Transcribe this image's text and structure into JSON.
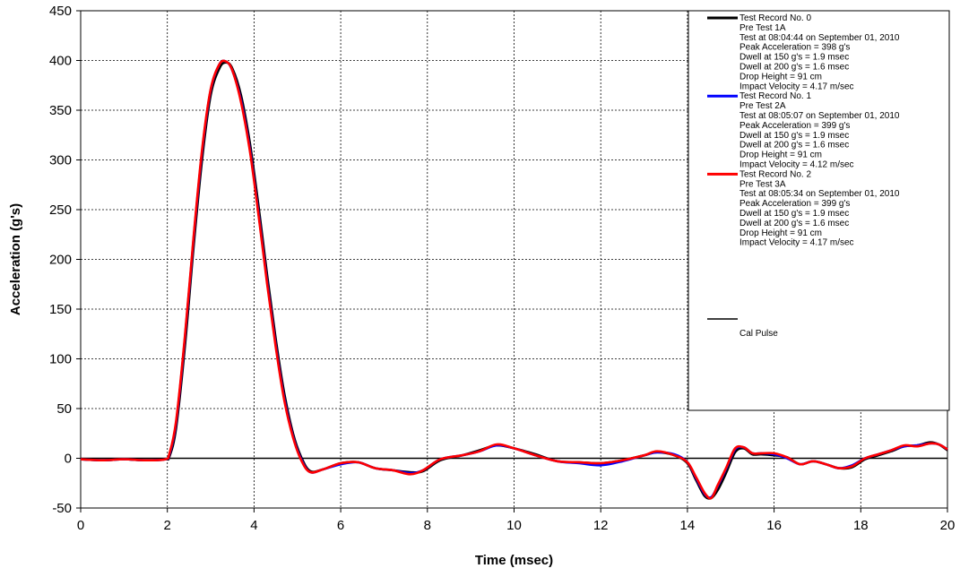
{
  "chart_data": {
    "type": "line",
    "xlabel": "Time (msec)",
    "ylabel": "Acceleration (g's)",
    "xlim": [
      0,
      20
    ],
    "ylim": [
      -50,
      450
    ],
    "x_ticks": [
      0,
      2,
      4,
      6,
      8,
      10,
      12,
      14,
      16,
      18,
      20
    ],
    "y_ticks": [
      -50,
      0,
      50,
      100,
      150,
      200,
      250,
      300,
      350,
      400,
      450
    ],
    "grid": "dashed",
    "legend_placement": "top-right",
    "series": [
      {
        "name": "Test Record No. 0",
        "color": "#000000",
        "lines": [
          "Pre Test 1A",
          "Test at 08:04:44 on September 01, 2010",
          "Peak Acceleration = 398 g's",
          "Dwell at 150 g's = 1.9 msec",
          "Dwell at 200 g's = 1.6 msec",
          "Drop Height = 91 cm",
          "Impact Velocity = 4.17 m/sec"
        ],
        "x": [
          0,
          0.5,
          1,
          1.5,
          1.95,
          2.05,
          2.2,
          2.4,
          2.6,
          2.8,
          3.0,
          3.2,
          3.35,
          3.5,
          3.7,
          3.9,
          4.1,
          4.3,
          4.5,
          4.7,
          4.9,
          5.1,
          5.3,
          5.6,
          6.0,
          6.4,
          6.8,
          7.2,
          7.6,
          7.9,
          8.3,
          8.8,
          9.2,
          9.6,
          10.0,
          10.5,
          11.0,
          11.5,
          12.0,
          12.5,
          13.0,
          13.3,
          13.7,
          14.0,
          14.2,
          14.4,
          14.55,
          14.7,
          14.9,
          15.1,
          15.3,
          15.5,
          15.7,
          16.0,
          16.3,
          16.6,
          16.9,
          17.2,
          17.5,
          17.8,
          18.1,
          18.4,
          18.7,
          19.0,
          19.3,
          19.6,
          19.8,
          20.0
        ],
        "y": [
          -1,
          -2,
          -1,
          -2,
          -1,
          2,
          30,
          110,
          210,
          300,
          365,
          392,
          398,
          392,
          365,
          318,
          255,
          185,
          120,
          65,
          25,
          0,
          -13,
          -11,
          -5,
          -4,
          -10,
          -12,
          -14,
          -13,
          -2,
          3,
          8,
          13,
          10,
          4,
          -3,
          -4,
          -5,
          -2,
          3,
          6,
          3,
          -5,
          -22,
          -38,
          -40,
          -32,
          -14,
          6,
          10,
          4,
          4,
          3,
          1,
          -6,
          -3,
          -6,
          -10,
          -9,
          -1,
          3,
          7,
          12,
          13,
          16,
          14,
          8
        ]
      },
      {
        "name": "Test Record No. 1",
        "color": "#0000ff",
        "lines": [
          "Pre Test 2A",
          "Test at 08:05:07 on September 01, 2010",
          "Peak Acceleration = 399 g's",
          "Dwell at 150 g's = 1.9 msec",
          "Dwell at 200 g's = 1.6 msec",
          "Drop Height = 91 cm",
          "Impact Velocity = 4.12 m/sec"
        ],
        "x": [
          0,
          0.5,
          1,
          1.5,
          1.95,
          2.05,
          2.2,
          2.4,
          2.6,
          2.8,
          3.0,
          3.2,
          3.35,
          3.5,
          3.7,
          3.9,
          4.1,
          4.3,
          4.5,
          4.7,
          4.9,
          5.1,
          5.3,
          5.6,
          6.0,
          6.4,
          6.8,
          7.2,
          7.6,
          7.9,
          8.3,
          8.8,
          9.2,
          9.6,
          10.0,
          10.5,
          11.0,
          11.5,
          12.0,
          12.5,
          13.0,
          13.3,
          13.7,
          14.0,
          14.2,
          14.4,
          14.55,
          14.7,
          14.9,
          15.1,
          15.3,
          15.5,
          15.7,
          16.0,
          16.3,
          16.6,
          16.9,
          17.2,
          17.5,
          17.8,
          18.1,
          18.4,
          18.7,
          19.0,
          19.3,
          19.6,
          19.8,
          20.0
        ],
        "y": [
          -1,
          -2,
          -1,
          -2,
          -1,
          4,
          35,
          118,
          218,
          308,
          370,
          396,
          399,
          390,
          360,
          312,
          248,
          178,
          114,
          60,
          22,
          -2,
          -14,
          -11,
          -6,
          -4,
          -10,
          -12,
          -15,
          -12,
          -1,
          3,
          7,
          13,
          10,
          3,
          -3,
          -5,
          -7,
          -3,
          3,
          6,
          4,
          -4,
          -20,
          -36,
          -39,
          -28,
          -10,
          9,
          11,
          5,
          5,
          4,
          0,
          -6,
          -3,
          -6,
          -10,
          -7,
          0,
          4,
          8,
          12,
          13,
          15,
          14,
          9
        ]
      },
      {
        "name": "Test Record No. 2",
        "color": "#ff0000",
        "lines": [
          "Pre Test 3A",
          "Test at 08:05:34 on September 01, 2010",
          "Peak Acceleration = 399 g's",
          "Dwell at 150 g's = 1.9 msec",
          "Dwell at 200 g's = 1.6 msec",
          "Drop Height = 91 cm",
          "Impact Velocity = 4.17 m/sec"
        ],
        "x": [
          0,
          0.5,
          1,
          1.5,
          1.95,
          2.05,
          2.2,
          2.4,
          2.6,
          2.8,
          3.0,
          3.2,
          3.35,
          3.5,
          3.7,
          3.9,
          4.1,
          4.3,
          4.5,
          4.7,
          4.9,
          5.1,
          5.3,
          5.6,
          6.0,
          6.4,
          6.8,
          7.2,
          7.6,
          7.9,
          8.3,
          8.8,
          9.2,
          9.6,
          10.0,
          10.5,
          11.0,
          11.5,
          12.0,
          12.5,
          13.0,
          13.3,
          13.7,
          14.0,
          14.2,
          14.4,
          14.55,
          14.7,
          14.9,
          15.1,
          15.3,
          15.5,
          15.7,
          16.0,
          16.3,
          16.6,
          16.9,
          17.2,
          17.5,
          17.8,
          18.1,
          18.4,
          18.7,
          19.0,
          19.3,
          19.6,
          19.8,
          20.0
        ],
        "y": [
          -1,
          -2,
          -1,
          -2,
          -1,
          5,
          37,
          120,
          220,
          310,
          371,
          396,
          399,
          390,
          358,
          310,
          246,
          176,
          112,
          58,
          21,
          -3,
          -14,
          -11,
          -5,
          -4,
          -10,
          -12,
          -16,
          -12,
          -1,
          3,
          7,
          14,
          10,
          3,
          -3,
          -4,
          -5,
          -2,
          3,
          7,
          3,
          -4,
          -19,
          -35,
          -40,
          -27,
          -9,
          10,
          11,
          5,
          5,
          5,
          1,
          -6,
          -3,
          -6,
          -10,
          -8,
          0,
          4,
          8,
          13,
          12,
          15,
          14,
          9
        ]
      }
    ],
    "zero_line": {
      "name": "Cal Pulse",
      "color": "#000000"
    }
  }
}
